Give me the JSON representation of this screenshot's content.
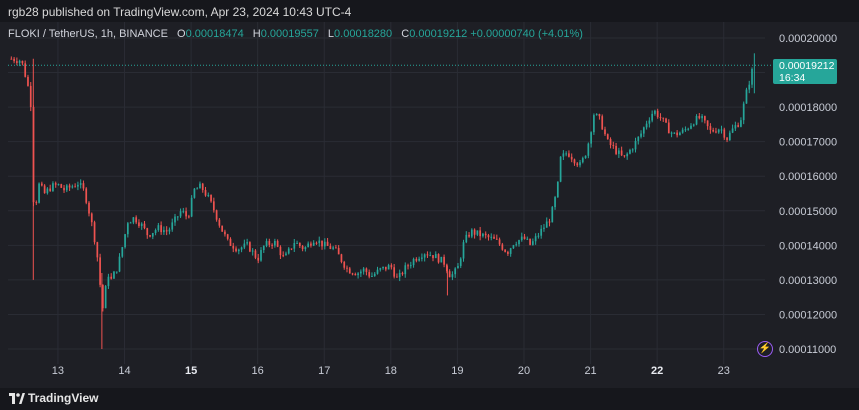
{
  "header": {
    "publisher_text": "rgb28 published on TradingView.com, Apr 23, 2024 10:43 UTC-4"
  },
  "legend": {
    "symbol": "FLOKI / TetherUS, 1h, BINANCE",
    "open_label": "O",
    "open": "0.00018474",
    "high_label": "H",
    "high": "0.00019557",
    "low_label": "L",
    "low": "0.00018280",
    "close_label": "C",
    "close": "0.00019212",
    "change": "+0.00000740 (+4.01%)"
  },
  "price_badge": {
    "price": "0.00019212",
    "countdown": "16:34"
  },
  "footer": {
    "brand": "TradingView"
  },
  "colors": {
    "up": "#26a69a",
    "down": "#ef5350",
    "background": "#1e1f25",
    "grid": "#2a2c34"
  },
  "chart_data": {
    "type": "candlestick",
    "title": "FLOKI / TetherUS, 1h, BINANCE",
    "ylim": [
      0.000105,
      0.000205
    ],
    "y_ticks": [
      "0.00011000",
      "0.00012000",
      "0.00013000",
      "0.00014000",
      "0.00015000",
      "0.00016000",
      "0.00017000",
      "0.00018000",
      "0.00019000",
      "0.00020000"
    ],
    "x_ticks": [
      {
        "label": "13",
        "day": 13,
        "bold": false
      },
      {
        "label": "14",
        "day": 14,
        "bold": false
      },
      {
        "label": "15",
        "day": 15,
        "bold": true
      },
      {
        "label": "16",
        "day": 16,
        "bold": false
      },
      {
        "label": "17",
        "day": 17,
        "bold": false
      },
      {
        "label": "18",
        "day": 18,
        "bold": false
      },
      {
        "label": "19",
        "day": 19,
        "bold": false
      },
      {
        "label": "20",
        "day": 20,
        "bold": false
      },
      {
        "label": "21",
        "day": 21,
        "bold": false
      },
      {
        "label": "22",
        "day": 22,
        "bold": true
      },
      {
        "label": "23",
        "day": 23,
        "bold": false
      }
    ],
    "x_range_days": [
      12.25,
      23.62
    ],
    "last_price": 0.00019212,
    "close_path": [
      [
        12.3,
        0.000194
      ],
      [
        12.45,
        0.0001935
      ],
      [
        12.5,
        0.00019
      ],
      [
        12.55,
        0.000186
      ],
      [
        12.6,
        0.00018
      ],
      [
        12.62,
        0.000155
      ],
      [
        12.66,
        0.00015
      ],
      [
        12.7,
        0.000158
      ],
      [
        12.8,
        0.000155
      ],
      [
        12.9,
        0.000157
      ],
      [
        13.0,
        0.0001575
      ],
      [
        13.1,
        0.000156
      ],
      [
        13.2,
        0.000157
      ],
      [
        13.3,
        0.000158
      ],
      [
        13.4,
        0.0001555
      ],
      [
        13.5,
        0.000147
      ],
      [
        13.55,
        0.000142
      ],
      [
        13.62,
        0.000133
      ],
      [
        13.66,
        0.00012
      ],
      [
        13.7,
        0.000125
      ],
      [
        13.75,
        0.000132
      ],
      [
        13.8,
        0.00013
      ],
      [
        13.9,
        0.000134
      ],
      [
        13.95,
        0.000138
      ],
      [
        14.05,
        0.000147
      ],
      [
        14.15,
        0.000148
      ],
      [
        14.25,
        0.000146
      ],
      [
        14.35,
        0.000143
      ],
      [
        14.5,
        0.000145
      ],
      [
        14.65,
        0.000144
      ],
      [
        14.75,
        0.000147
      ],
      [
        14.85,
        0.00015
      ],
      [
        14.95,
        0.000148
      ],
      [
        15.05,
        0.000156
      ],
      [
        15.15,
        0.000157
      ],
      [
        15.25,
        0.000154
      ],
      [
        15.35,
        0.00015
      ],
      [
        15.45,
        0.000145
      ],
      [
        15.55,
        0.000141
      ],
      [
        15.7,
        0.000139
      ],
      [
        15.85,
        0.00014
      ],
      [
        16.0,
        0.000136
      ],
      [
        16.1,
        0.00014
      ],
      [
        16.25,
        0.000141
      ],
      [
        16.4,
        0.000136
      ],
      [
        16.55,
        0.000141
      ],
      [
        16.7,
        0.000139
      ],
      [
        16.85,
        0.000142
      ],
      [
        17.0,
        0.00014
      ],
      [
        17.15,
        0.000139
      ],
      [
        17.25,
        0.000136
      ],
      [
        17.35,
        0.000133
      ],
      [
        17.5,
        0.000132
      ],
      [
        17.6,
        0.000133
      ],
      [
        17.7,
        0.000131
      ],
      [
        17.85,
        0.000133
      ],
      [
        18.0,
        0.000134
      ],
      [
        18.1,
        0.00013
      ],
      [
        18.2,
        0.000133
      ],
      [
        18.35,
        0.000136
      ],
      [
        18.5,
        0.000138
      ],
      [
        18.65,
        0.000137
      ],
      [
        18.8,
        0.000135
      ],
      [
        18.9,
        0.000131
      ],
      [
        19.0,
        0.000133
      ],
      [
        19.1,
        0.000141
      ],
      [
        19.2,
        0.000144
      ],
      [
        19.35,
        0.000143
      ],
      [
        19.5,
        0.000142
      ],
      [
        19.6,
        0.000141
      ],
      [
        19.75,
        0.000138
      ],
      [
        19.85,
        0.000141
      ],
      [
        20.0,
        0.000142
      ],
      [
        20.1,
        0.00014
      ],
      [
        20.25,
        0.000144
      ],
      [
        20.4,
        0.000148
      ],
      [
        20.5,
        0.000156
      ],
      [
        20.55,
        0.000165
      ],
      [
        20.65,
        0.000167
      ],
      [
        20.75,
        0.000165
      ],
      [
        20.85,
        0.000163
      ],
      [
        20.95,
        0.000168
      ],
      [
        21.05,
        0.000178
      ],
      [
        21.15,
        0.000176
      ],
      [
        21.25,
        0.00017
      ],
      [
        21.35,
        0.000168
      ],
      [
        21.5,
        0.000165
      ],
      [
        21.65,
        0.000169
      ],
      [
        21.75,
        0.000172
      ],
      [
        21.85,
        0.000176
      ],
      [
        21.95,
        0.000179
      ],
      [
        22.05,
        0.000177
      ],
      [
        22.15,
        0.000174
      ],
      [
        22.25,
        0.000172
      ],
      [
        22.4,
        0.000173
      ],
      [
        22.55,
        0.000176
      ],
      [
        22.65,
        0.000177
      ],
      [
        22.8,
        0.000173
      ],
      [
        22.95,
        0.000174
      ],
      [
        23.05,
        0.000171
      ],
      [
        23.15,
        0.000174
      ],
      [
        23.25,
        0.000176
      ],
      [
        23.35,
        0.000185
      ],
      [
        23.45,
        0.0001921
      ]
    ]
  }
}
